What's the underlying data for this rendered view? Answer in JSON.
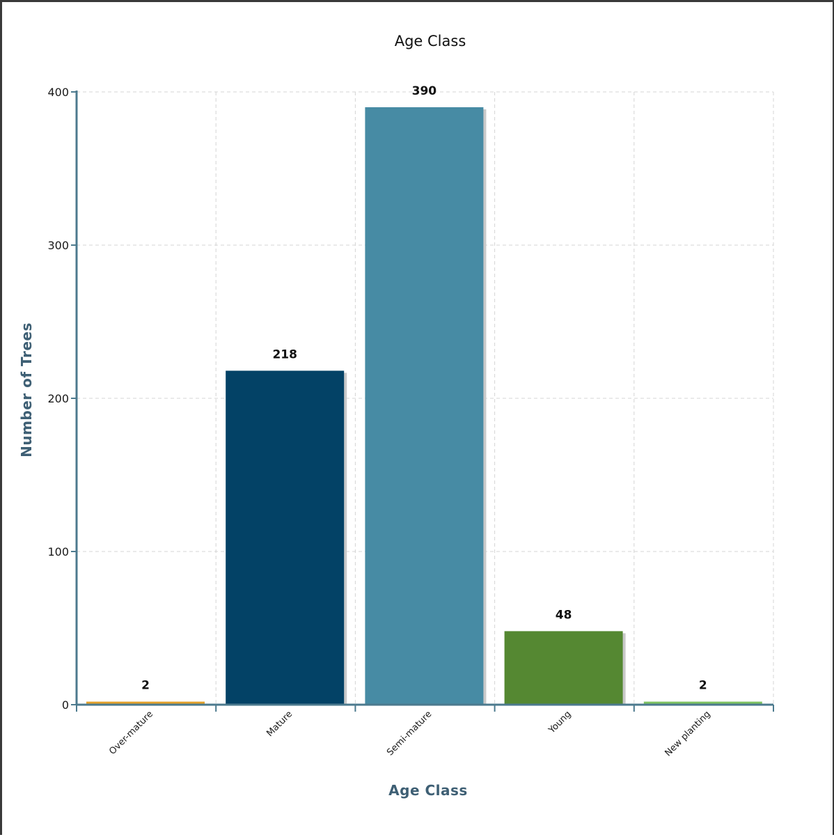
{
  "chart_data": {
    "type": "bar",
    "title": "Age Class",
    "xlabel": "Age Class",
    "ylabel": "Number of Trees",
    "categories": [
      "Over-mature",
      "Mature",
      "Semi-mature",
      "Young",
      "New planting"
    ],
    "values": [
      2,
      218,
      390,
      48,
      2
    ],
    "value_labels": [
      "2",
      "218",
      "390",
      "48",
      "2"
    ],
    "colors": [
      "#e3a12b",
      "#034266",
      "#478ba4",
      "#558832",
      "#7ec261"
    ],
    "ylim": [
      0,
      400
    ],
    "yticks": [
      0,
      100,
      200,
      300,
      400
    ],
    "ytick_labels": [
      "0",
      "100",
      "200",
      "300",
      "400"
    ],
    "grid": true,
    "axis_color": "#4c7a8e",
    "grid_color": "#d4d4d4"
  }
}
